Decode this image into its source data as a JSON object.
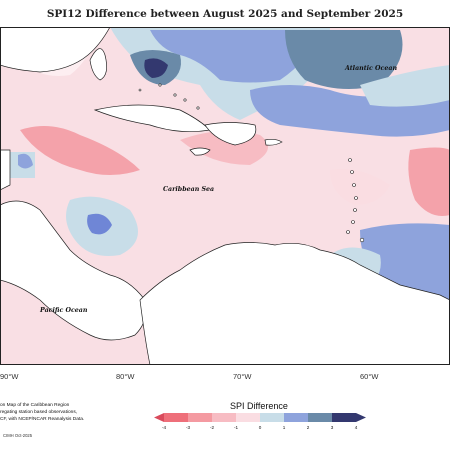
{
  "title": "SPI12 Difference between August 2025 and September 2025",
  "labels": {
    "atlantic": "Atlantic Ocean",
    "caribbean": "Caribbean Sea",
    "pacific": "Pacific Ocean"
  },
  "longitudes": [
    "90°W",
    "80°W",
    "70°W",
    "60°W"
  ],
  "credit_lines": [
    "on Map of the Caribbean Region",
    "regating station based observations,",
    "CF, with NCEP/NCAR Reanalysis Data."
  ],
  "stamp": "CIMH Oct-2025",
  "legend": {
    "title": "SPI Difference",
    "ticks": [
      "-4",
      "-3",
      "-2",
      "-1",
      "0",
      "1",
      "2",
      "3",
      "4"
    ],
    "colors": [
      "#ee6f7a",
      "#f49aa1",
      "#f7bcc3",
      "#fadde2",
      "#ffffff",
      "#c8dde8",
      "#8ea3dc",
      "#6a8aa8",
      "#33386f",
      "#d94a5c"
    ]
  }
}
